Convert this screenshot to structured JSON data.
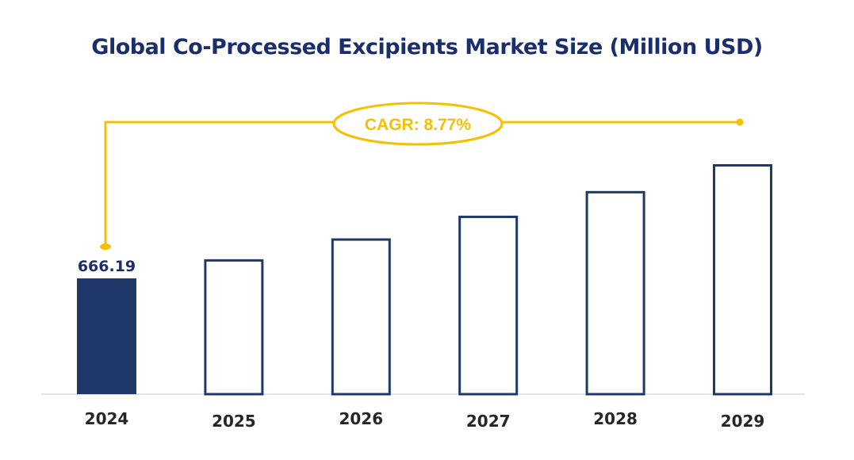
{
  "chart_data": {
    "type": "bar",
    "title": "Global Co-Processed Excipients Market Size (Million USD)",
    "categories": [
      "2024",
      "2025",
      "2026",
      "2027",
      "2028",
      "2029"
    ],
    "values": [
      666.19,
      724.6,
      788.2,
      857.4,
      932.6,
      1014.4
    ],
    "data_labels": [
      "666.19",
      "",
      "",
      "",
      "",
      ""
    ],
    "annotation": "CAGR: 8.77%",
    "xlabel": "",
    "ylabel": "",
    "grid": false,
    "legend": "none",
    "colors": {
      "filled_bar": "#1f3869",
      "outline_bar": "#1f3869",
      "annotation": "#f5c000",
      "title": "#1a2e6b",
      "axis": "#d9d9d9"
    }
  }
}
